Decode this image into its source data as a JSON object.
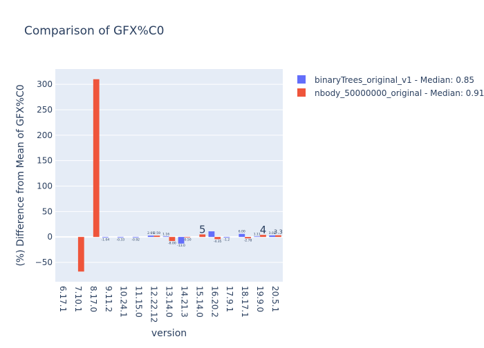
{
  "chart_data": {
    "type": "bar",
    "title": "Comparison of GFX%C0",
    "xlabel": "version",
    "ylabel": "(%) Difference from Mean of GFX%C0",
    "ylim": [
      -88,
      330
    ],
    "yticks": [
      -50,
      0,
      50,
      100,
      150,
      200,
      250,
      300
    ],
    "categories": [
      "6.17.1",
      "7.10.1",
      "8.17.0",
      "9.11.2",
      "10.24.1",
      "11.15.0",
      "12.22.12",
      "13.14.0",
      "14.21.3",
      "15.14.0",
      "16.20.2",
      "17.9.1",
      "18.17.1",
      "19.9.0",
      "20.5.1"
    ],
    "series": [
      {
        "name": "binaryTrees_original_v1 - Median: 0.85",
        "color": "#636efa",
        "values": [
          null,
          null,
          null,
          -1.04,
          -0.33,
          -0.92,
          2.69,
          1.16,
          -13.0,
          null,
          11.0,
          -1.2,
          6.0,
          1.11,
          3.03
        ],
        "labels": [
          null,
          null,
          null,
          "-1.04",
          "-0.33",
          "-0.92",
          "2.69",
          "1.16",
          "-13.0",
          null,
          null,
          "-1.2",
          "6.00",
          "1.11",
          "3.03"
        ]
      },
      {
        "name": "nbody_50000000_original - Median: 0.91",
        "color": "#ef553b",
        "values": [
          null,
          -68,
          310,
          null,
          null,
          null,
          2.59,
          -8.0,
          -0.5,
          5.0,
          -4.35,
          null,
          -2.78,
          4.0,
          3.3
        ],
        "labels": [
          null,
          null,
          null,
          null,
          null,
          null,
          "2.59",
          "-8.00",
          "-0.50",
          "5",
          "-4.35",
          null,
          "-2.78",
          "4",
          "3.3"
        ]
      }
    ],
    "legend_position": "top-right"
  }
}
